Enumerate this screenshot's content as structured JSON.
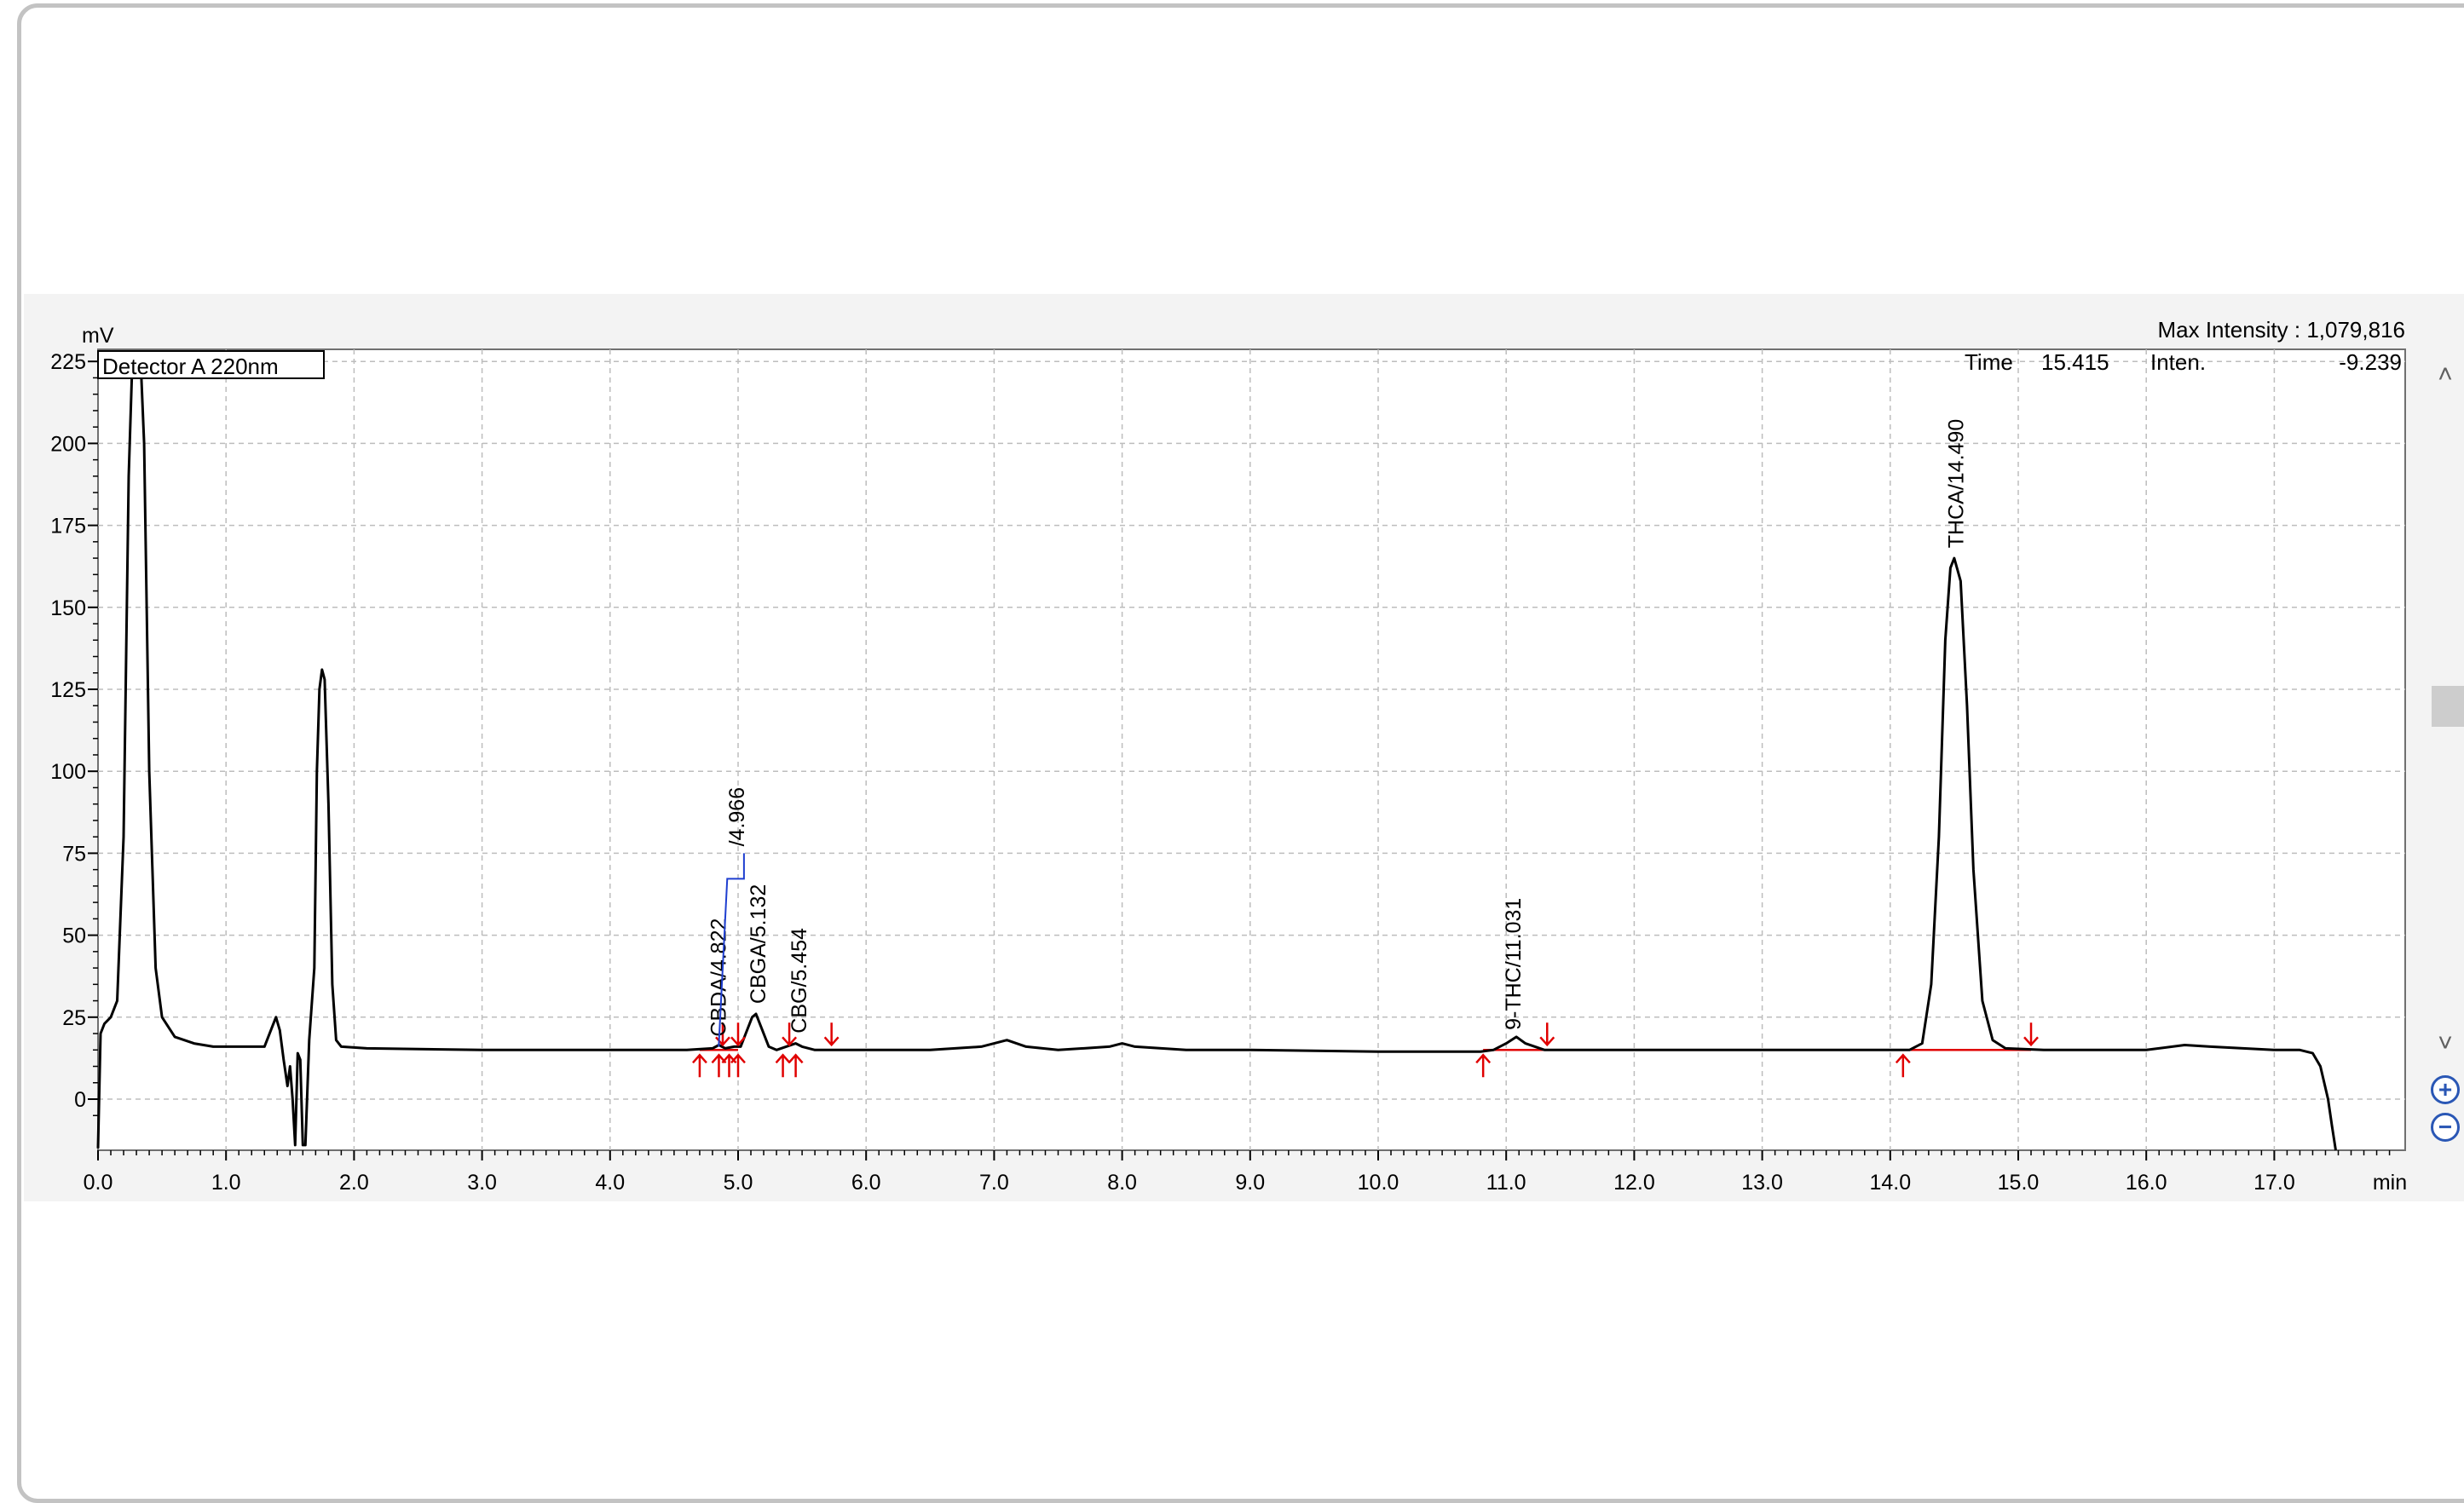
{
  "chart_data": {
    "type": "line",
    "detector_label": "Detector A 220nm",
    "y_unit": "mV",
    "x_unit": "min",
    "xlim": [
      0.0,
      18.0
    ],
    "ylim": [
      -17,
      226
    ],
    "x_ticks": [
      "0.0",
      "1.0",
      "2.0",
      "3.0",
      "4.0",
      "5.0",
      "6.0",
      "7.0",
      "8.0",
      "9.0",
      "10.0",
      "11.0",
      "12.0",
      "13.0",
      "14.0",
      "15.0",
      "16.0",
      "17.0"
    ],
    "y_ticks": [
      "0",
      "25",
      "50",
      "75",
      "100",
      "125",
      "150",
      "175",
      "200",
      "225"
    ],
    "max_intensity_label": "Max Intensity : 1,079,816",
    "cursor_readout": {
      "time_label": "Time",
      "time_value": "15.415",
      "inten_label": "Inten.",
      "inten_value": "-9.239"
    },
    "grid": true,
    "series": [
      {
        "points": [
          [
            0.0,
            -15
          ],
          [
            0.02,
            20
          ],
          [
            0.05,
            23
          ],
          [
            0.1,
            25
          ],
          [
            0.15,
            30
          ],
          [
            0.2,
            80
          ],
          [
            0.24,
            190
          ],
          [
            0.27,
            228
          ],
          [
            0.33,
            228
          ],
          [
            0.36,
            200
          ],
          [
            0.4,
            100
          ],
          [
            0.45,
            40
          ],
          [
            0.5,
            25
          ],
          [
            0.6,
            19
          ],
          [
            0.75,
            17
          ],
          [
            0.9,
            16
          ],
          [
            1.1,
            16
          ],
          [
            1.3,
            16
          ],
          [
            1.36,
            22
          ],
          [
            1.39,
            25
          ],
          [
            1.42,
            21
          ],
          [
            1.45,
            12
          ],
          [
            1.48,
            4
          ],
          [
            1.5,
            10
          ],
          [
            1.52,
            0
          ],
          [
            1.54,
            -14
          ],
          [
            1.56,
            14
          ],
          [
            1.58,
            12
          ],
          [
            1.6,
            -14
          ],
          [
            1.62,
            -14
          ],
          [
            1.65,
            18
          ],
          [
            1.69,
            40
          ],
          [
            1.71,
            100
          ],
          [
            1.73,
            125
          ],
          [
            1.75,
            131
          ],
          [
            1.77,
            128
          ],
          [
            1.8,
            90
          ],
          [
            1.83,
            35
          ],
          [
            1.86,
            18
          ],
          [
            1.9,
            16
          ],
          [
            2.1,
            15.5
          ],
          [
            3.0,
            15
          ],
          [
            4.0,
            15
          ],
          [
            4.6,
            15
          ],
          [
            4.8,
            15.5
          ],
          [
            4.85,
            16.5
          ],
          [
            4.9,
            15.5
          ],
          [
            4.97,
            16
          ],
          [
            5.02,
            16
          ],
          [
            5.06,
            20
          ],
          [
            5.11,
            25
          ],
          [
            5.14,
            26
          ],
          [
            5.18,
            22
          ],
          [
            5.24,
            16
          ],
          [
            5.3,
            15
          ],
          [
            5.45,
            17
          ],
          [
            5.5,
            16
          ],
          [
            5.6,
            15
          ],
          [
            6.0,
            15
          ],
          [
            6.5,
            15
          ],
          [
            6.9,
            16
          ],
          [
            7.1,
            18
          ],
          [
            7.25,
            16
          ],
          [
            7.5,
            15
          ],
          [
            7.9,
            16
          ],
          [
            8.0,
            17
          ],
          [
            8.1,
            16
          ],
          [
            8.5,
            15
          ],
          [
            9.0,
            15
          ],
          [
            10.0,
            14.5
          ],
          [
            10.8,
            14.5
          ],
          [
            10.9,
            15
          ],
          [
            11.0,
            17
          ],
          [
            11.08,
            19
          ],
          [
            11.15,
            17
          ],
          [
            11.3,
            15
          ],
          [
            12.0,
            15
          ],
          [
            13.0,
            15
          ],
          [
            13.8,
            15
          ],
          [
            14.0,
            15
          ],
          [
            14.15,
            15
          ],
          [
            14.25,
            17
          ],
          [
            14.32,
            35
          ],
          [
            14.38,
            80
          ],
          [
            14.43,
            140
          ],
          [
            14.47,
            162
          ],
          [
            14.5,
            165
          ],
          [
            14.55,
            158
          ],
          [
            14.6,
            120
          ],
          [
            14.65,
            70
          ],
          [
            14.72,
            30
          ],
          [
            14.8,
            18
          ],
          [
            14.9,
            15.5
          ],
          [
            15.2,
            15
          ],
          [
            16.0,
            15
          ],
          [
            16.3,
            16.5
          ],
          [
            16.5,
            16
          ],
          [
            17.0,
            15
          ],
          [
            17.2,
            15
          ],
          [
            17.3,
            14
          ],
          [
            17.36,
            10
          ],
          [
            17.42,
            0
          ],
          [
            17.45,
            -8
          ],
          [
            17.48,
            -17
          ]
        ]
      }
    ],
    "peak_labels": [
      {
        "text": "CBDA/4.822",
        "x": 4.822,
        "y": 17
      },
      {
        "text": "/4.966",
        "x": 4.966,
        "y": 75
      },
      {
        "text": "CBGA/5.132",
        "x": 5.132,
        "y": 27
      },
      {
        "text": "CBG/5.454",
        "x": 5.454,
        "y": 18
      },
      {
        "text": "9-THC/11.031",
        "x": 11.031,
        "y": 19
      },
      {
        "text": "THCA/14.490",
        "x": 14.49,
        "y": 166
      }
    ],
    "baselines": [
      {
        "x1": 4.7,
        "x2": 5.0,
        "y": 15
      },
      {
        "x1": 10.82,
        "x2": 11.32,
        "y": 15
      },
      {
        "x1": 14.1,
        "x2": 15.1,
        "y": 15
      }
    ],
    "start_markers": [
      4.7,
      4.85,
      4.93,
      5.0,
      5.35,
      5.45,
      10.82,
      14.1
    ],
    "end_markers": [
      4.88,
      5.0,
      5.4,
      5.73,
      11.32,
      15.1
    ],
    "colors": {
      "trace": "#000000",
      "integration": "#e00000",
      "label_link": "#1f3fd0",
      "grid": "#bdbdbd"
    }
  },
  "controls": {
    "scroll_up": "˄",
    "scroll_down": "˅",
    "zoom_in": "+",
    "zoom_out": "−"
  }
}
